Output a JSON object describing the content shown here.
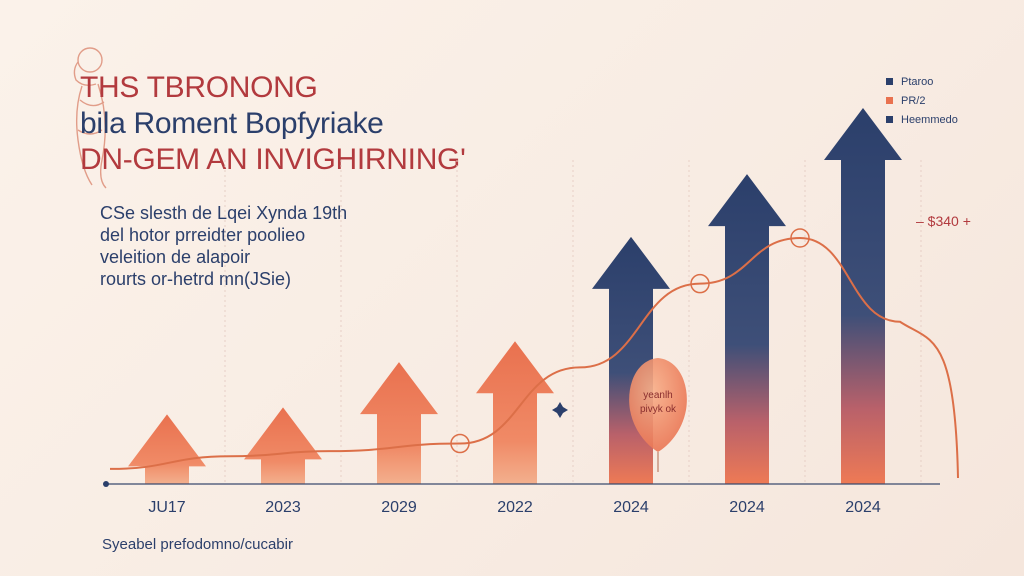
{
  "header": {
    "title_lines": [
      "THS TBRONONG",
      "bila Roment Bopfyriake",
      "DN-GEM AN INVIGHIRNING'"
    ]
  },
  "description": {
    "lines": [
      "CSe slesth de Lqei Xynda 19th",
      "del hotor prreidter poolieo",
      "veleition de alapoir",
      "rourts or-hetrd mn(JSie)"
    ]
  },
  "legend": {
    "items": [
      {
        "label": "Ptaroo",
        "color": "#2b3f6b"
      },
      {
        "label": "PR/2",
        "color": "#e9714f"
      },
      {
        "label": "Heemmedo",
        "color": "#2b3f6b"
      }
    ]
  },
  "callout": "– $340 +",
  "balloon": {
    "lines": [
      "yeanlh",
      "pivyk ok"
    ]
  },
  "footer": "Syeabel prefodomno/cucabir",
  "colors": {
    "navy": "#2b3f6b",
    "coral": "#e9714f",
    "brick": "#b23a3e",
    "line": "#dc6f48"
  },
  "chart_data": {
    "type": "bar",
    "categories": [
      "JU17",
      "2023",
      "2029",
      "2022",
      "2024",
      "2024",
      "2024"
    ],
    "series": [
      {
        "values": [
          20,
          22,
          35,
          41,
          71,
          89,
          108
        ]
      }
    ],
    "trend_line": [
      2,
      7,
      9,
      12,
      42,
      75,
      93,
      60
    ],
    "annotations": [
      "– $340 +"
    ]
  }
}
